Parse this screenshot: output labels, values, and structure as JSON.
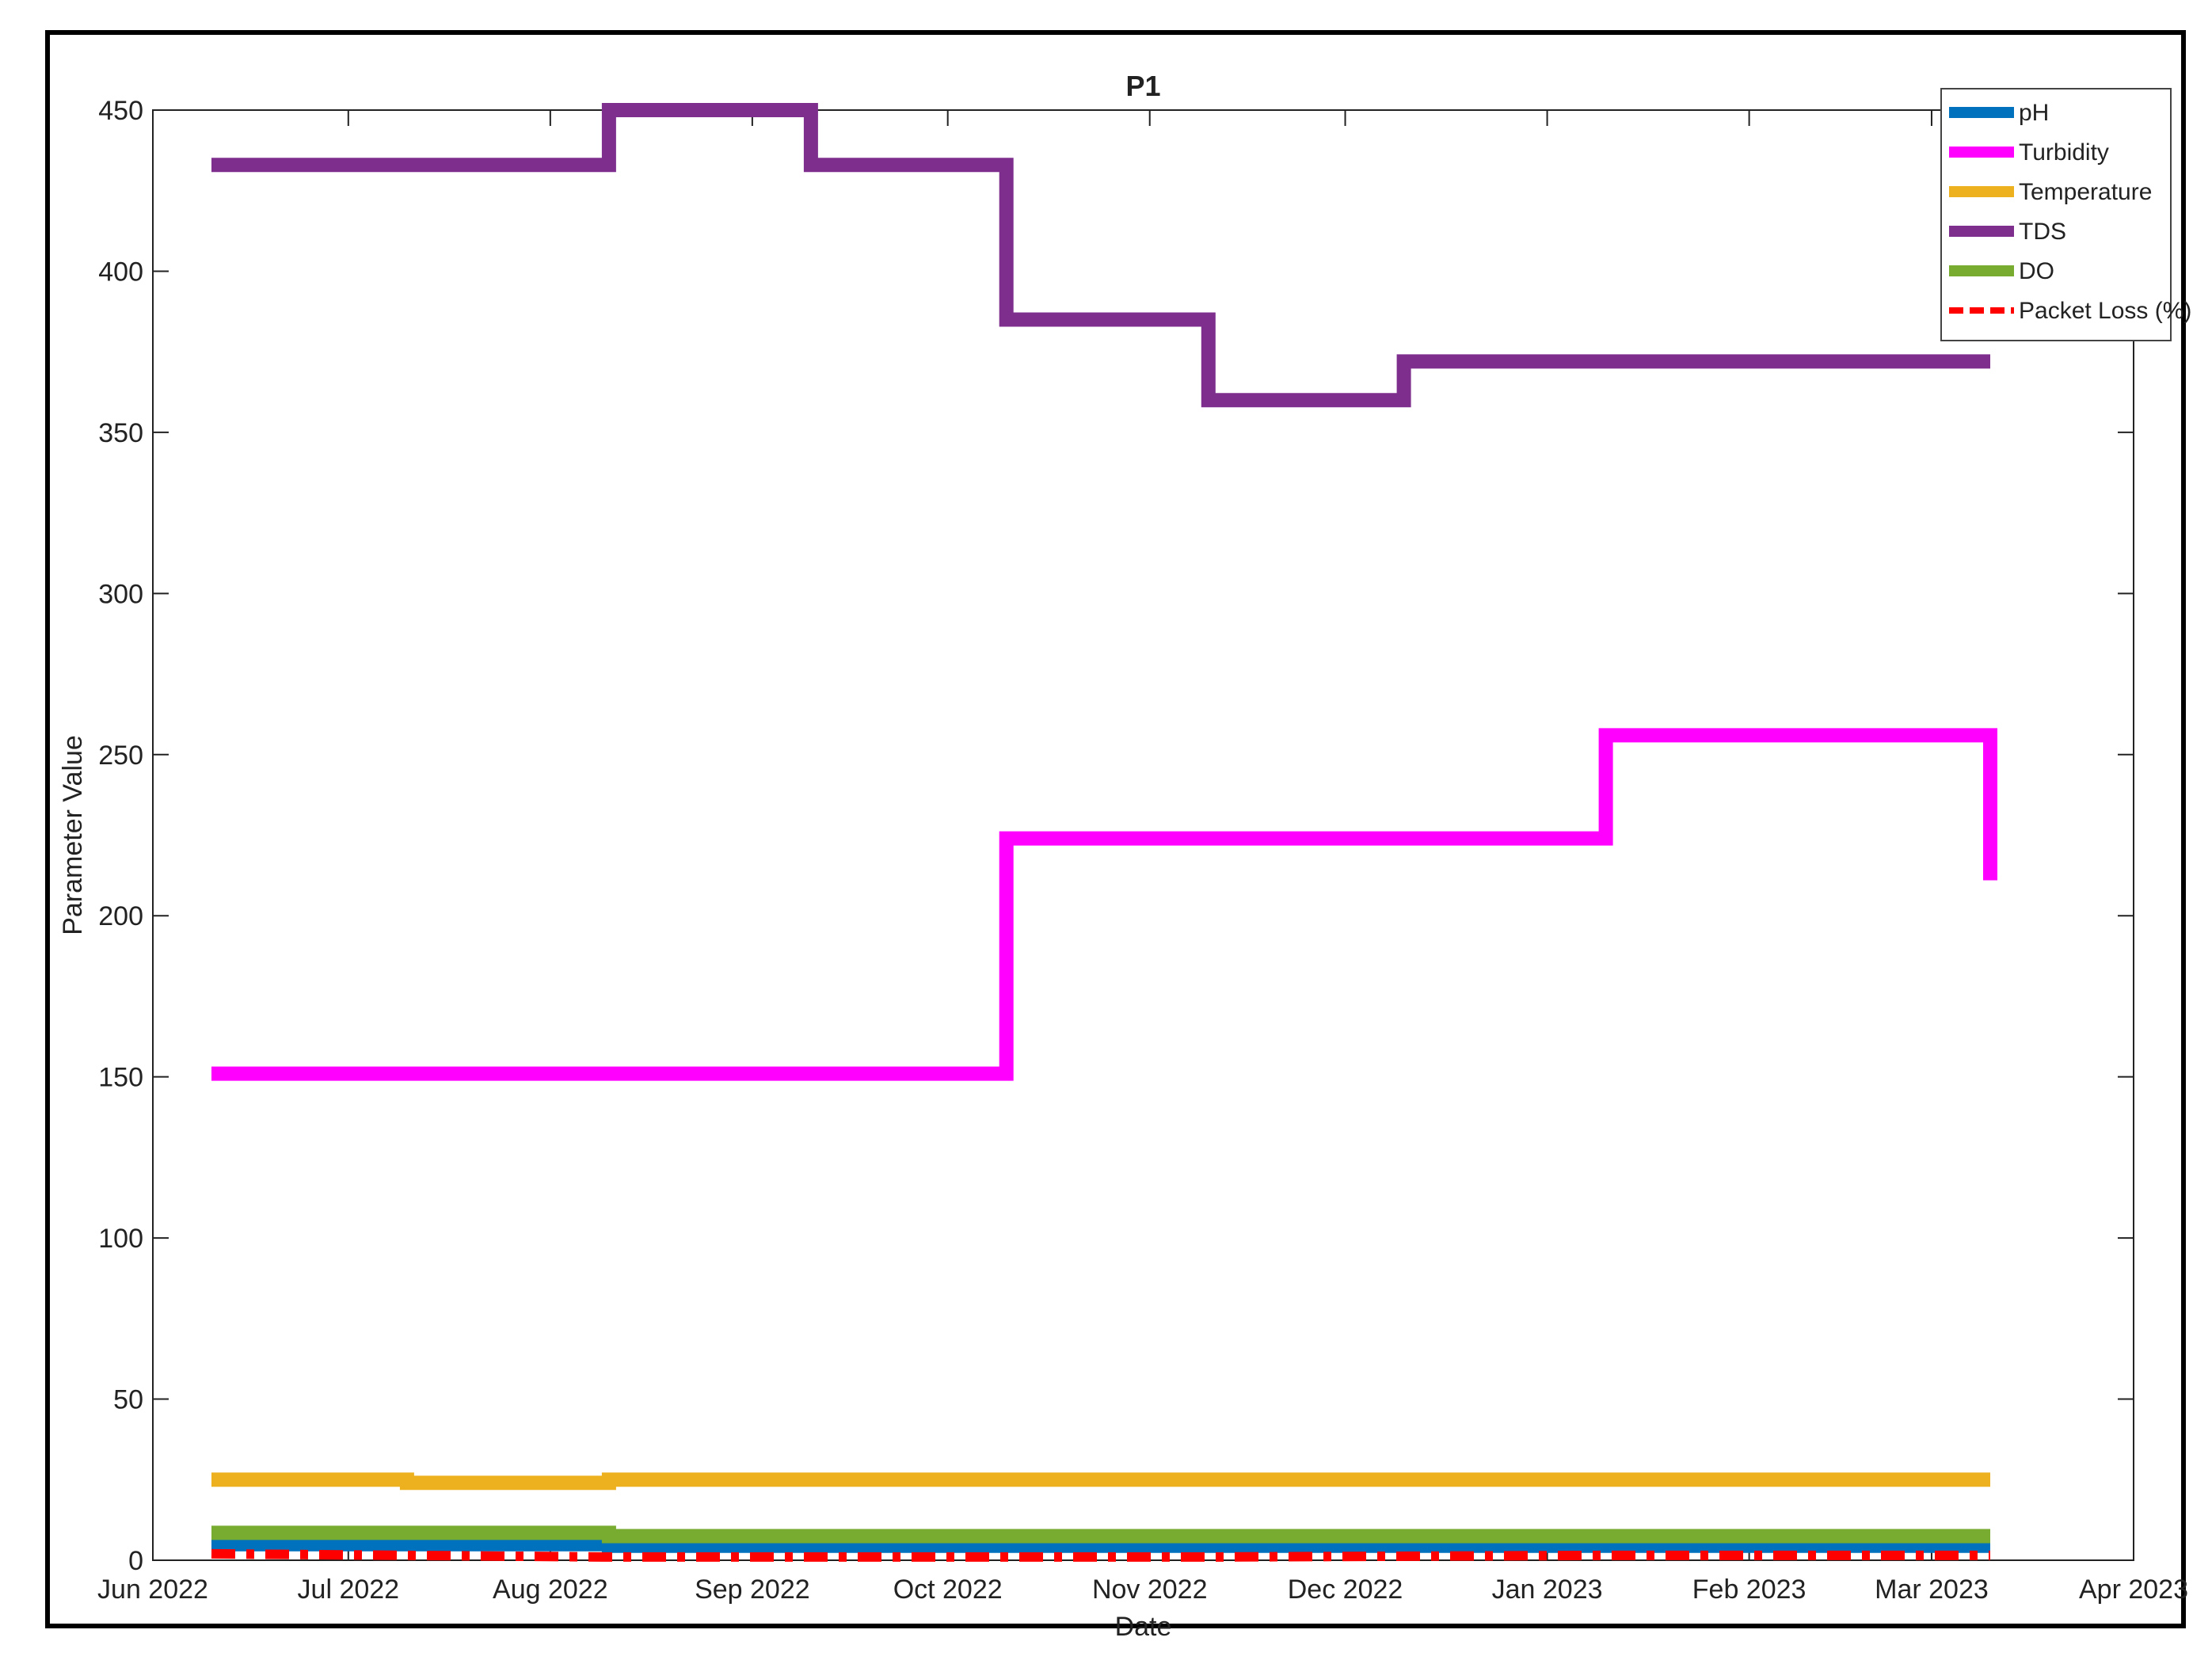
{
  "chart_data": {
    "type": "line",
    "title": "P1",
    "xlabel": "Date",
    "ylabel": "Parameter Value",
    "x_ticks": [
      {
        "date": "2022-06-01",
        "label": "Jun 2022"
      },
      {
        "date": "2022-07-01",
        "label": "Jul 2022"
      },
      {
        "date": "2022-08-01",
        "label": "Aug 2022"
      },
      {
        "date": "2022-09-01",
        "label": "Sep 2022"
      },
      {
        "date": "2022-10-01",
        "label": "Oct 2022"
      },
      {
        "date": "2022-11-01",
        "label": "Nov 2022"
      },
      {
        "date": "2022-12-01",
        "label": "Dec 2022"
      },
      {
        "date": "2023-01-01",
        "label": "Jan 2023"
      },
      {
        "date": "2023-02-01",
        "label": "Feb 2023"
      },
      {
        "date": "2023-03-01",
        "label": "Mar 2023"
      },
      {
        "date": "2023-04-01",
        "label": "Apr 2023"
      }
    ],
    "xlim": [
      "2022-06-01",
      "2023-04-01"
    ],
    "ylim": [
      0,
      450
    ],
    "y_ticks": [
      0,
      50,
      100,
      150,
      200,
      250,
      300,
      350,
      400,
      450
    ],
    "legend_position": "top-right",
    "grid": false,
    "series": [
      {
        "name": "pH",
        "color": "#0072BD",
        "dashed": false,
        "points": [
          [
            "2022-06-10",
            5
          ],
          [
            "2022-08-10",
            5
          ],
          [
            "2022-08-10",
            4.5
          ],
          [
            "2023-03-10",
            4.5
          ]
        ]
      },
      {
        "name": "Turbidity",
        "color": "#FF00FF",
        "dashed": false,
        "points": [
          [
            "2022-06-10",
            151
          ],
          [
            "2022-10-10",
            151
          ],
          [
            "2022-10-10",
            224
          ],
          [
            "2023-01-10",
            224
          ],
          [
            "2023-01-10",
            256
          ],
          [
            "2023-03-10",
            256
          ],
          [
            "2023-03-10",
            211
          ]
        ]
      },
      {
        "name": "Temperature",
        "color": "#EDB120",
        "dashed": false,
        "points": [
          [
            "2022-06-10",
            25
          ],
          [
            "2022-07-10",
            25
          ],
          [
            "2022-07-10",
            24
          ],
          [
            "2022-08-10",
            24
          ],
          [
            "2022-08-10",
            25
          ],
          [
            "2023-03-10",
            25
          ]
        ]
      },
      {
        "name": "TDS",
        "color": "#7E2F8E",
        "dashed": false,
        "points": [
          [
            "2022-06-10",
            433
          ],
          [
            "2022-08-10",
            433
          ],
          [
            "2022-08-10",
            450
          ],
          [
            "2022-09-10",
            450
          ],
          [
            "2022-09-10",
            433
          ],
          [
            "2022-10-10",
            433
          ],
          [
            "2022-10-10",
            385
          ],
          [
            "2022-11-10",
            385
          ],
          [
            "2022-11-10",
            360
          ],
          [
            "2022-12-10",
            360
          ],
          [
            "2022-12-10",
            372
          ],
          [
            "2023-03-10",
            372
          ]
        ]
      },
      {
        "name": "DO",
        "color": "#77AC30",
        "dashed": false,
        "points": [
          [
            "2022-06-10",
            8.5
          ],
          [
            "2022-08-10",
            8.5
          ],
          [
            "2022-08-10",
            7.5
          ],
          [
            "2023-03-10",
            7.5
          ]
        ]
      },
      {
        "name": "Packet Loss (%)",
        "color": "#FF0000",
        "dashed": true,
        "points": [
          [
            "2022-06-10",
            2
          ],
          [
            "2022-08-10",
            1
          ],
          [
            "2022-11-10",
            1
          ],
          [
            "2023-01-10",
            1.5
          ],
          [
            "2023-03-10",
            1.5
          ]
        ]
      }
    ]
  }
}
